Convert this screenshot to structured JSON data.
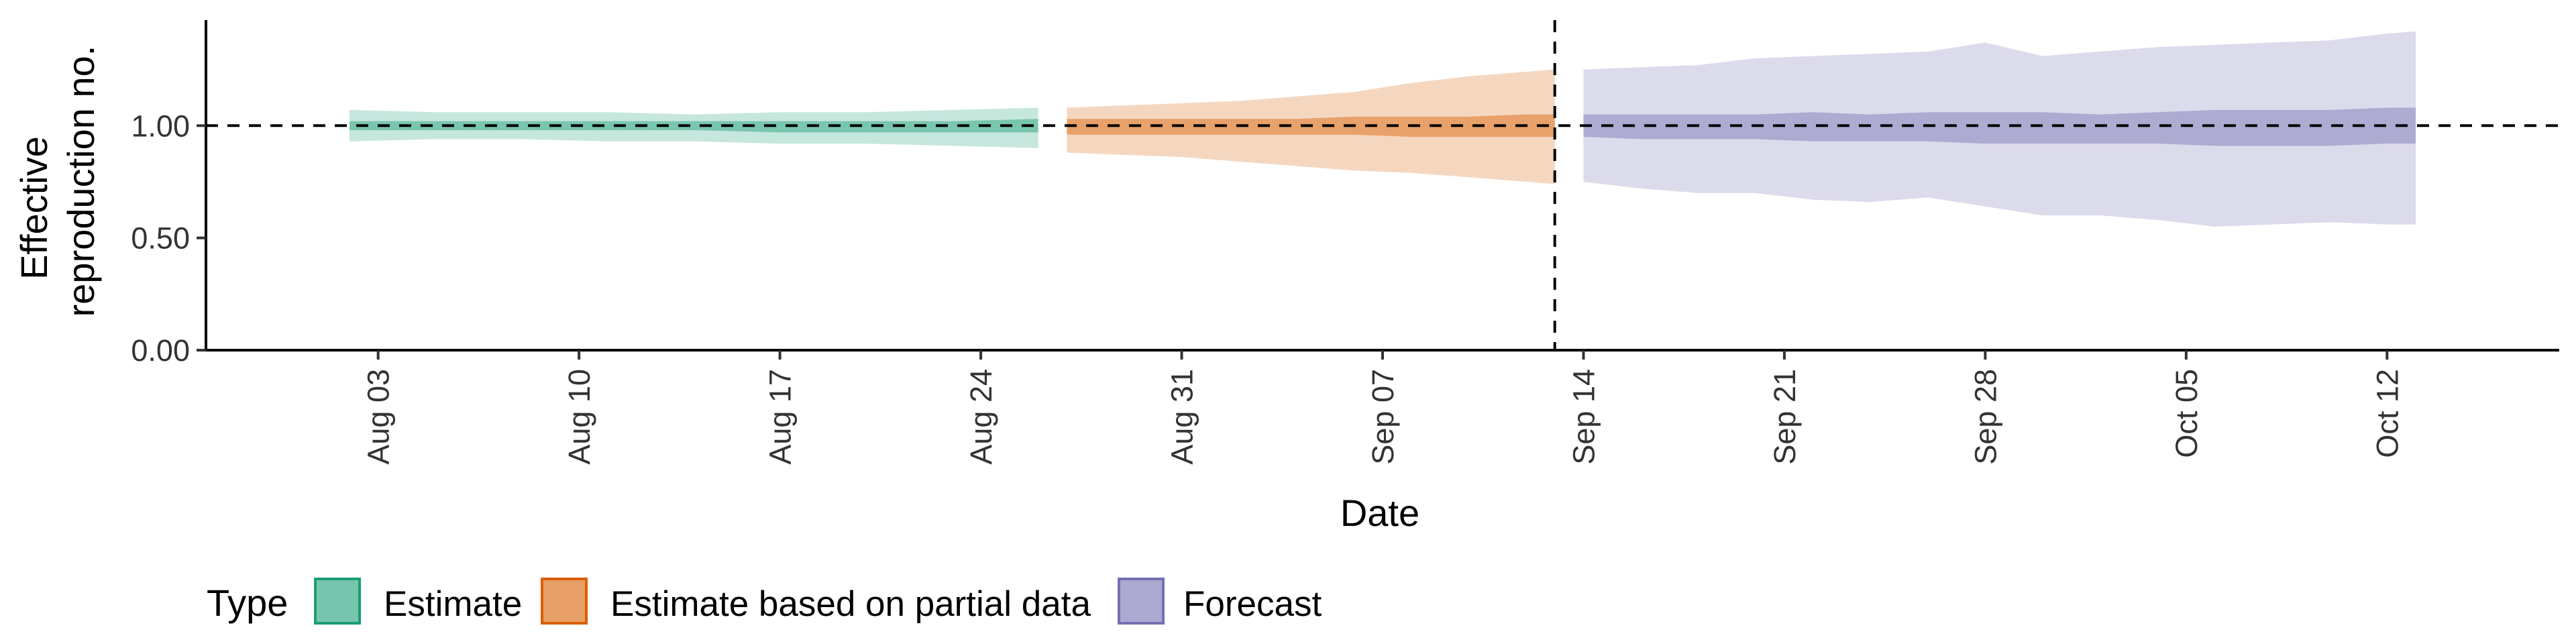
{
  "chart_data": {
    "type": "area",
    "xlabel": "Date",
    "ylabel_lines": [
      "Effective",
      "reproduction no."
    ],
    "ylim": [
      0,
      1.47
    ],
    "yticks": [
      0,
      0.5,
      1.0
    ],
    "ytick_labels": [
      "0.00",
      "0.50",
      "1.00"
    ],
    "xlim": [
      "2020-07-28",
      "2020-10-18"
    ],
    "xticks": [
      "2020-08-03",
      "2020-08-10",
      "2020-08-17",
      "2020-08-24",
      "2020-08-31",
      "2020-09-07",
      "2020-09-14",
      "2020-09-21",
      "2020-09-28",
      "2020-10-05",
      "2020-10-12"
    ],
    "xtick_labels": [
      "Aug 03",
      "Aug 10",
      "Aug 17",
      "Aug 24",
      "Aug 31",
      "Sep 07",
      "Sep 14",
      "Sep 21",
      "Sep 28",
      "Oct 05",
      "Oct 12"
    ],
    "reference_hline": 1.0,
    "forecast_date": "2020-09-13",
    "grid": false,
    "legend_position": "bottom",
    "legend_title": "Type",
    "series": [
      {
        "name": "Estimate",
        "color": "#1b9e77",
        "dates": [
          "2020-08-02",
          "2020-08-05",
          "2020-08-08",
          "2020-08-11",
          "2020-08-14",
          "2020-08-17",
          "2020-08-20",
          "2020-08-23",
          "2020-08-26"
        ],
        "outer_lower": [
          0.93,
          0.94,
          0.94,
          0.93,
          0.93,
          0.92,
          0.92,
          0.91,
          0.9
        ],
        "outer_upper": [
          1.07,
          1.06,
          1.06,
          1.06,
          1.05,
          1.06,
          1.06,
          1.07,
          1.08
        ],
        "inner_lower": [
          0.98,
          0.98,
          0.98,
          0.98,
          0.98,
          0.97,
          0.97,
          0.97,
          0.97
        ],
        "inner_upper": [
          1.02,
          1.02,
          1.02,
          1.02,
          1.02,
          1.02,
          1.02,
          1.02,
          1.03
        ]
      },
      {
        "name": "Estimate based on partial data",
        "color": "#d95f02",
        "dates": [
          "2020-08-27",
          "2020-08-29",
          "2020-08-31",
          "2020-09-02",
          "2020-09-04",
          "2020-09-06",
          "2020-09-08",
          "2020-09-10",
          "2020-09-12",
          "2020-09-13"
        ],
        "outer_lower": [
          0.88,
          0.87,
          0.86,
          0.84,
          0.82,
          0.8,
          0.79,
          0.77,
          0.75,
          0.74
        ],
        "outer_upper": [
          1.08,
          1.09,
          1.1,
          1.11,
          1.13,
          1.15,
          1.19,
          1.22,
          1.24,
          1.25
        ],
        "inner_lower": [
          0.96,
          0.96,
          0.96,
          0.96,
          0.96,
          0.96,
          0.95,
          0.95,
          0.95,
          0.95
        ],
        "inner_upper": [
          1.03,
          1.03,
          1.03,
          1.03,
          1.03,
          1.04,
          1.04,
          1.04,
          1.05,
          1.05
        ]
      },
      {
        "name": "Forecast",
        "color": "#7570b3",
        "dates": [
          "2020-09-14",
          "2020-09-16",
          "2020-09-18",
          "2020-09-20",
          "2020-09-22",
          "2020-09-24",
          "2020-09-26",
          "2020-09-28",
          "2020-09-30",
          "2020-10-02",
          "2020-10-04",
          "2020-10-06",
          "2020-10-08",
          "2020-10-10",
          "2020-10-12",
          "2020-10-13"
        ],
        "outer_lower": [
          0.75,
          0.72,
          0.7,
          0.7,
          0.67,
          0.66,
          0.68,
          0.64,
          0.6,
          0.6,
          0.58,
          0.55,
          0.56,
          0.57,
          0.56,
          0.56
        ],
        "outer_upper": [
          1.25,
          1.26,
          1.27,
          1.3,
          1.31,
          1.32,
          1.33,
          1.37,
          1.31,
          1.33,
          1.35,
          1.36,
          1.37,
          1.38,
          1.41,
          1.42
        ],
        "inner_lower": [
          0.95,
          0.94,
          0.94,
          0.94,
          0.93,
          0.93,
          0.93,
          0.92,
          0.92,
          0.92,
          0.92,
          0.91,
          0.91,
          0.91,
          0.92,
          0.92
        ],
        "inner_upper": [
          1.05,
          1.05,
          1.05,
          1.05,
          1.06,
          1.05,
          1.06,
          1.06,
          1.06,
          1.05,
          1.06,
          1.07,
          1.07,
          1.07,
          1.08,
          1.08
        ]
      }
    ]
  }
}
